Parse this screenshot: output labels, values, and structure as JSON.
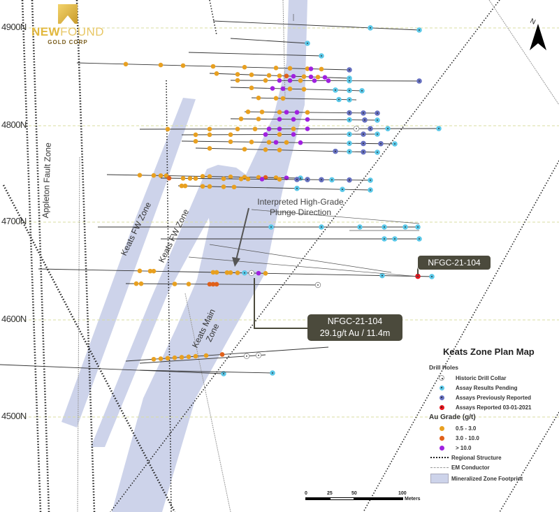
{
  "title": "Keats Zone Plan Map",
  "logo": {
    "name_bold": "NEW",
    "name_light": "FOUND",
    "sub": "GOLD CORP"
  },
  "grid_labels": [
    "4900N",
    "4800N",
    "4700N",
    "4600N",
    "4500N"
  ],
  "zone_labels": {
    "appleton": "Appleton Fault Zone",
    "fw1": "Keats FW Zone",
    "fw2": "Keats FW Zone",
    "main_line1": "Keats Main",
    "main_line2": "Zone"
  },
  "plunge": {
    "line1": "Interpreted High-Grade",
    "line2": "Plunge Direction"
  },
  "callouts": {
    "hole_label": "NFGC-21-104",
    "result_hole": "NFGC-21-104",
    "result_value": "29.1g/t Au / 11.4m"
  },
  "legend": {
    "drill_holes_title": "Drill Holes",
    "drill_holes": [
      {
        "label": "Historic Drill Collar",
        "color": "#ffffff"
      },
      {
        "label": "Assay Results Pending",
        "color": "#5bc8e8"
      },
      {
        "label": "Assays Previously Reported",
        "color": "#6670c0"
      },
      {
        "label": "Assays Reported 03-01-2021",
        "color": "#e8141c"
      }
    ],
    "grade_title": "Au Grade (g/t)",
    "grades": [
      {
        "label": "0.5 - 3.0",
        "color": "#e8a020"
      },
      {
        "label": "3.0 - 10.0",
        "color": "#e0601a"
      },
      {
        "label": "> 10.0",
        "color": "#a020e0"
      }
    ],
    "regional_structure": "Regional Structure",
    "em_conductor": "EM Conductor",
    "zone_footprint": "Mineralized Zone Footprint"
  },
  "scale_bar": {
    "ticks": [
      "0",
      "25",
      "50",
      "100"
    ],
    "unit": "Meters"
  },
  "north_label": "N",
  "colors": {
    "zone": "#cdd3ea",
    "callout": "#4b4a3c",
    "grid": "#d8dca0"
  }
}
